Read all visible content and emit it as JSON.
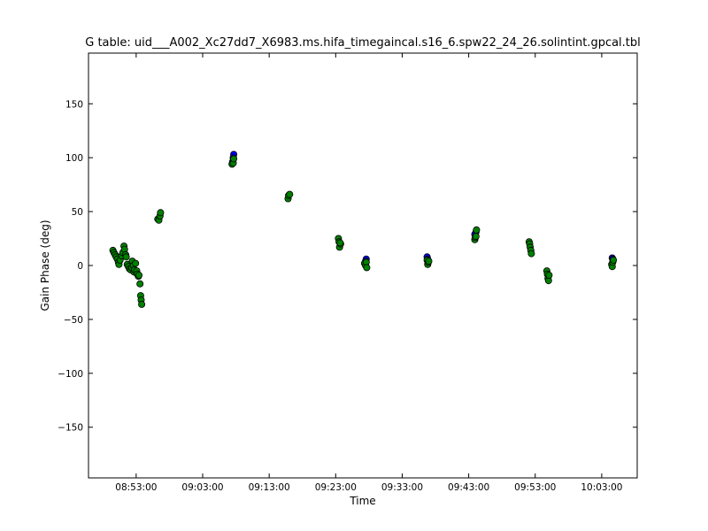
{
  "chart_data": {
    "type": "scatter",
    "title": "G table: uid___A002_Xc27dd7_X6983.ms.hifa_timegaincal.s16_6.spw22_24_26.solintint.gpcal.tbl",
    "xlabel": "Time",
    "ylabel": "Gain Phase (deg)",
    "xlim": [
      "08:45:50",
      "10:08:20"
    ],
    "ylim": [
      -197,
      197
    ],
    "x_ticks": [
      "08:53:00",
      "09:03:00",
      "09:13:00",
      "09:23:00",
      "09:33:00",
      "09:43:00",
      "09:53:00",
      "10:03:00"
    ],
    "y_ticks": [
      -150,
      -100,
      -50,
      0,
      50,
      100,
      150
    ],
    "grid": false,
    "colors": {
      "series_blue": "#0000ff",
      "series_green": "#008000",
      "marker_edge": "#000000"
    },
    "series": [
      {
        "color": "#0000ff",
        "points": [
          [
            "09:07:40",
            103
          ],
          [
            "09:07:35",
            100
          ],
          [
            "09:07:30",
            96
          ],
          [
            "09:36:45",
            8
          ],
          [
            "09:36:50",
            6
          ],
          [
            "09:27:35",
            6
          ],
          [
            "09:27:30",
            4
          ],
          [
            "09:43:55",
            29
          ],
          [
            "09:44:05",
            31
          ],
          [
            "10:04:35",
            7
          ],
          [
            "10:04:40",
            6
          ]
        ]
      },
      {
        "color": "#008000",
        "points": [
          [
            "08:49:30",
            14
          ],
          [
            "08:49:40",
            12
          ],
          [
            "08:49:50",
            10
          ],
          [
            "08:50:00",
            8
          ],
          [
            "08:50:10",
            6
          ],
          [
            "08:50:20",
            3
          ],
          [
            "08:50:25",
            1
          ],
          [
            "08:50:35",
            5
          ],
          [
            "08:50:50",
            9
          ],
          [
            "08:51:00",
            12
          ],
          [
            "08:51:10",
            18
          ],
          [
            "08:51:15",
            15
          ],
          [
            "08:51:25",
            10
          ],
          [
            "08:51:30",
            8
          ],
          [
            "08:51:40",
            1
          ],
          [
            "08:51:50",
            -1
          ],
          [
            "08:52:00",
            -3
          ],
          [
            "08:52:10",
            -4
          ],
          [
            "08:52:20",
            -2
          ],
          [
            "08:52:25",
            4
          ],
          [
            "08:52:35",
            0
          ],
          [
            "08:52:40",
            -6
          ],
          [
            "08:52:45",
            -4
          ],
          [
            "08:52:55",
            2
          ],
          [
            "08:53:05",
            -5
          ],
          [
            "08:53:10",
            -8
          ],
          [
            "08:53:20",
            -10
          ],
          [
            "08:53:25",
            -9
          ],
          [
            "08:53:35",
            -17
          ],
          [
            "08:53:40",
            -28
          ],
          [
            "08:53:45",
            -32
          ],
          [
            "08:53:50",
            -36
          ],
          [
            "08:56:15",
            43
          ],
          [
            "08:56:25",
            42
          ],
          [
            "08:56:35",
            46
          ],
          [
            "08:56:40",
            49
          ],
          [
            "09:07:25",
            94
          ],
          [
            "09:07:35",
            95
          ],
          [
            "09:07:40",
            99
          ],
          [
            "09:15:50",
            62
          ],
          [
            "09:15:55",
            65
          ],
          [
            "09:16:05",
            66
          ],
          [
            "09:23:25",
            25
          ],
          [
            "09:23:30",
            22
          ],
          [
            "09:23:35",
            17
          ],
          [
            "09:23:45",
            20
          ],
          [
            "09:23:40",
            21
          ],
          [
            "09:27:20",
            2
          ],
          [
            "09:27:30",
            0
          ],
          [
            "09:27:35",
            3
          ],
          [
            "09:27:40",
            -2
          ],
          [
            "09:36:45",
            5
          ],
          [
            "09:36:50",
            1
          ],
          [
            "09:36:55",
            3
          ],
          [
            "09:37:00",
            4
          ],
          [
            "09:43:55",
            24
          ],
          [
            "09:44:00",
            26
          ],
          [
            "09:44:05",
            27
          ],
          [
            "09:44:10",
            33
          ],
          [
            "09:52:05",
            22
          ],
          [
            "09:52:10",
            20
          ],
          [
            "09:52:15",
            17
          ],
          [
            "09:52:20",
            14
          ],
          [
            "09:52:25",
            11
          ],
          [
            "09:54:45",
            -5
          ],
          [
            "09:54:50",
            -8
          ],
          [
            "09:54:55",
            -12
          ],
          [
            "09:55:00",
            -14
          ],
          [
            "09:55:05",
            -9
          ],
          [
            "10:04:30",
            1
          ],
          [
            "10:04:35",
            -1
          ],
          [
            "10:04:40",
            3
          ],
          [
            "10:04:45",
            5
          ]
        ]
      }
    ]
  }
}
